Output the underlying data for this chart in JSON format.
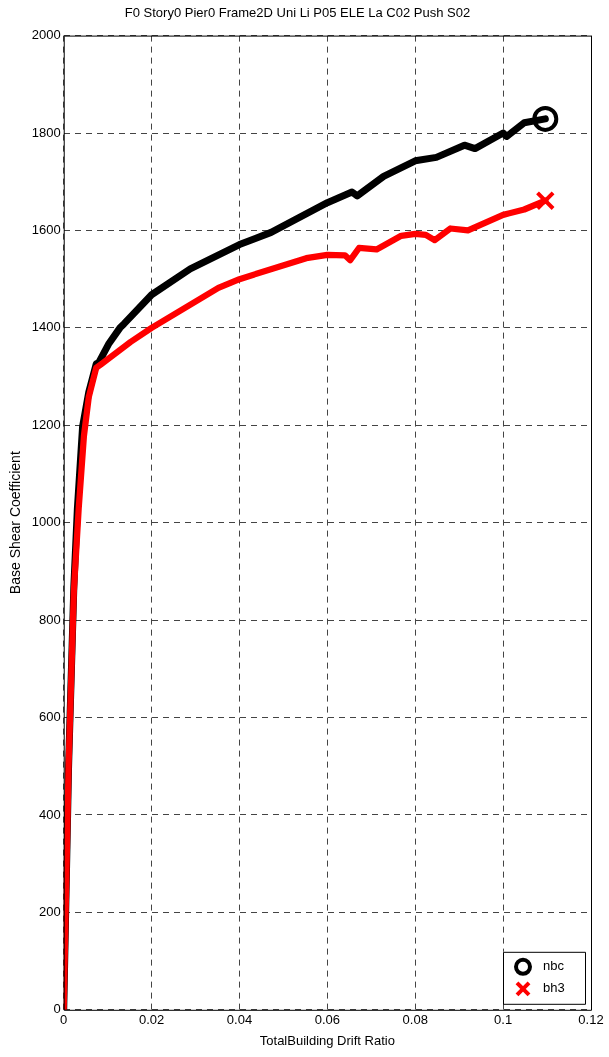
{
  "chart_data": {
    "type": "line",
    "title": "F0 Story0 Pier0 Frame2D Uni Li P05 ELE La C02 Push S02",
    "xlabel": "TotalBuilding Drift Ratio",
    "ylabel": "Base Shear Coefficient",
    "xlim": [
      0,
      0.12
    ],
    "ylim": [
      0,
      2000
    ],
    "xticks": [
      0,
      0.02,
      0.04,
      0.06,
      0.08,
      0.1,
      0.12
    ],
    "yticks": [
      0,
      200,
      400,
      600,
      800,
      1000,
      1200,
      1400,
      1600,
      1800,
      2000
    ],
    "grid": true,
    "legend": "bottom right",
    "line_style": "solid",
    "series": [
      {
        "color": "#000000",
        "marker": "none",
        "x": [
          0,
          0.0011,
          0.0023,
          0.0031,
          0.0043,
          0.0057,
          0.0074,
          0.008,
          0.0103,
          0.0128,
          0.0137,
          0.02,
          0.0288,
          0.04,
          0.0472,
          0.06,
          0.0656,
          0.0668,
          0.0728,
          0.08,
          0.0848,
          0.0912,
          0.0936,
          0.1,
          0.1008,
          0.1048,
          0.1096
        ],
        "values": [
          0,
          498,
          868,
          1028,
          1198,
          1268,
          1326,
          1329,
          1368,
          1400,
          1408,
          1468,
          1521,
          1571,
          1596,
          1657,
          1679,
          1671,
          1711,
          1743,
          1750,
          1775,
          1768,
          1800,
          1793,
          1821,
          1829
        ]
      },
      {
        "color": "#ff0000",
        "marker": "none",
        "x": [
          0,
          0.0011,
          0.0023,
          0.0034,
          0.0046,
          0.0057,
          0.0074,
          0.0086,
          0.0152,
          0.02,
          0.0352,
          0.04,
          0.0552,
          0.06,
          0.064,
          0.0652,
          0.0672,
          0.0712,
          0.0768,
          0.08,
          0.0824,
          0.0844,
          0.088,
          0.092,
          0.1,
          0.1048,
          0.1096
        ],
        "values": [
          0,
          498,
          858,
          1028,
          1178,
          1258,
          1318,
          1326,
          1371,
          1400,
          1482,
          1500,
          1543,
          1550,
          1549,
          1539,
          1564,
          1561,
          1589,
          1593,
          1591,
          1580,
          1604,
          1600,
          1632,
          1643,
          1661
        ]
      },
      {
        "name": "nbc",
        "type": "scatter",
        "color": "#000000",
        "marker": "circle",
        "x": [
          0.1096
        ],
        "values": [
          1829
        ]
      },
      {
        "name": "bh3",
        "type": "scatter",
        "color": "#ff0000",
        "marker": "cross",
        "x": [
          0.1096
        ],
        "values": [
          1661
        ]
      }
    ]
  }
}
